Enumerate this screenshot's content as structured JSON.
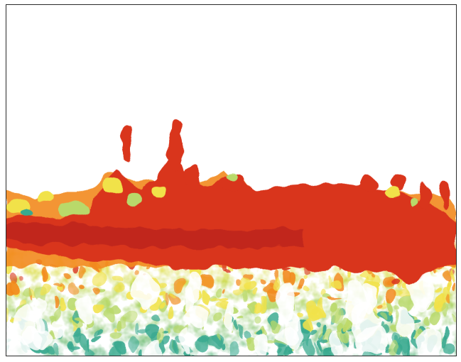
{
  "image": {
    "kind": "sonar-echogram",
    "colors": {
      "background": "#ffffff",
      "border": "#2a2a2a",
      "strong": "#d9361f",
      "strong_dark": "#b8231a",
      "medium": "#f28a1e",
      "weak": "#f1e24a",
      "weaker": "#b9d96a",
      "weakest": "#39a98f"
    }
  }
}
